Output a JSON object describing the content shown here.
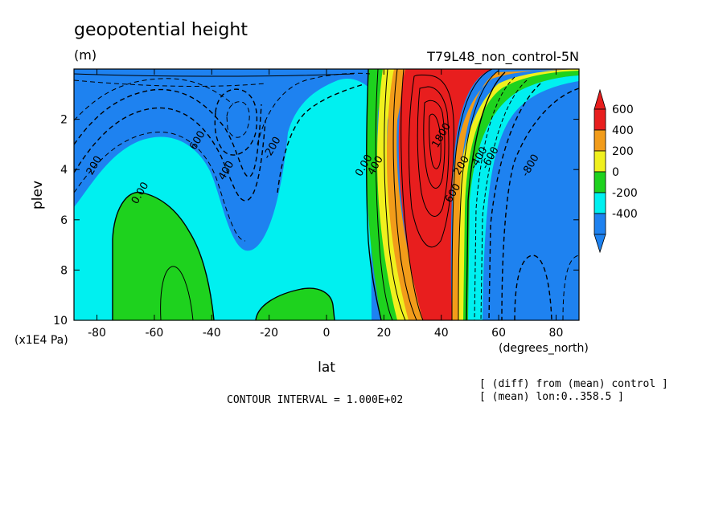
{
  "chart_data": {
    "type": "heatmap",
    "title": "geopotential height",
    "units": "(m)",
    "run_label": "T79L48_non_control-5N",
    "xlabel": "lat",
    "xunits": "(degrees_north)",
    "ylabel": "plev",
    "yunits": "(x1E4 Pa)",
    "xlim": [
      -88,
      88
    ],
    "ylim": [
      10,
      0
    ],
    "x_ticks": [
      "-80",
      "-60",
      "-40",
      "-20",
      "0",
      "20",
      "40",
      "60",
      "80"
    ],
    "x_tick_values": [
      -80,
      -60,
      -40,
      -20,
      0,
      20,
      40,
      60,
      80
    ],
    "y_ticks": [
      "2",
      "4",
      "6",
      "8",
      "10"
    ],
    "y_tick_values": [
      2,
      4,
      6,
      8,
      10
    ],
    "contour_interval_text": "CONTOUR INTERVAL = 1.000E+02",
    "footnotes": [
      "[ (diff) from (mean) control ]",
      "[ (mean) lon:0..358.5 ]"
    ],
    "colorbar": {
      "labels": [
        "600",
        "400",
        "200",
        "0",
        "-200",
        "-400"
      ],
      "levels": [
        600,
        400,
        200,
        0,
        -200,
        -400
      ],
      "colors": [
        "#e81e1e",
        "#f29c1a",
        "#f0f01e",
        "#1ed21e",
        "#00f0f0",
        "#1e82f0"
      ]
    },
    "contour_labels": [
      {
        "text": "600",
        "lat": -44,
        "plev": 2.9
      },
      {
        "text": "400",
        "lat": -34,
        "plev": 4.1
      },
      {
        "text": "200",
        "lat": -80,
        "plev": 3.9
      },
      {
        "text": "-200",
        "lat": -18,
        "plev": 3.2
      },
      {
        "text": "0.00",
        "lat": -64,
        "plev": 5.0
      },
      {
        "text": "0.00",
        "lat": 14,
        "plev": 3.9
      },
      {
        "text": "400",
        "lat": 18,
        "plev": 3.9
      },
      {
        "text": "1800",
        "lat": 41,
        "plev": 2.7
      },
      {
        "text": "600",
        "lat": 45,
        "plev": 5.0
      },
      {
        "text": "200",
        "lat": 48,
        "plev": 3.9
      },
      {
        "text": "-400",
        "lat": 54,
        "plev": 3.6
      },
      {
        "text": "-600",
        "lat": 58,
        "plev": 3.6
      },
      {
        "text": "-800",
        "lat": 72,
        "plev": 3.9
      }
    ]
  }
}
